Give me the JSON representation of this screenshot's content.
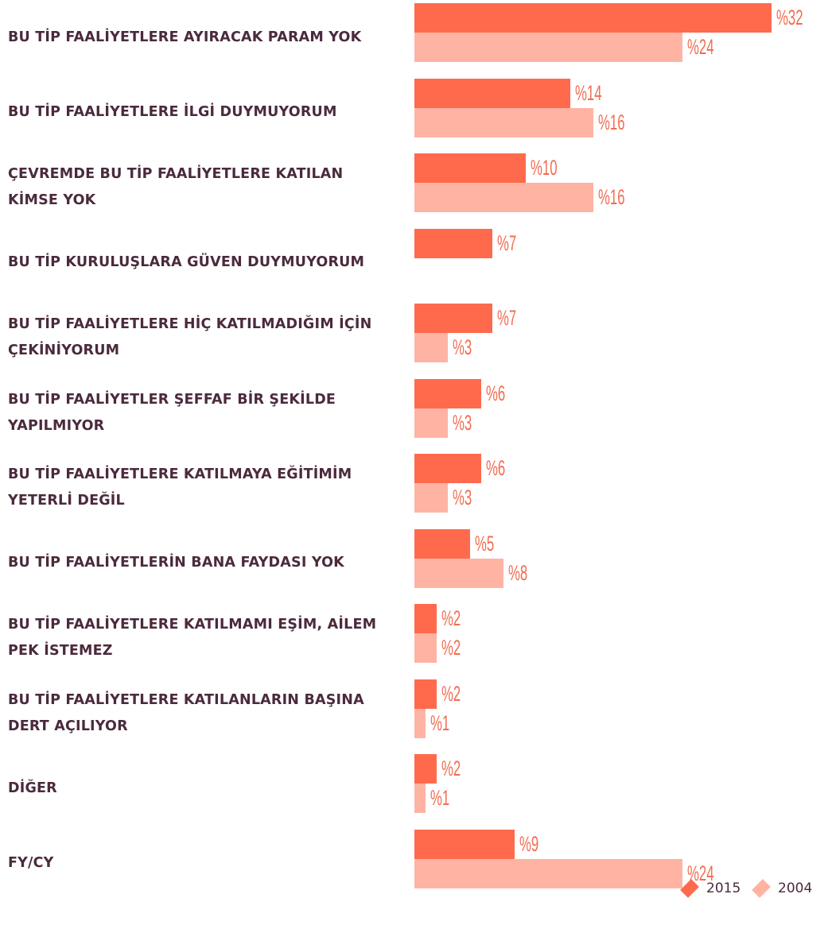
{
  "chart_data": {
    "type": "bar",
    "horizontal": true,
    "categories": [
      "BU TİP FAALİYETLERE AYIRACAK PARAM YOK",
      "BU TİP FAALİYETLERE İLGİ DUYMUYORUM",
      "ÇEVREMDE BU TİP FAALİYETLERE KATILAN KİMSE YOK",
      "BU TİP KURULUŞLARA GÜVEN DUYMUYORUM",
      "BU TİP FAALİYETLERE HİÇ KATILMADIĞIM İÇİN ÇEKİNİYORUM",
      "BU TİP FAALİYETLER ŞEFFAF BİR ŞEKİLDE YAPILMIYOR",
      "BU TİP FAALİYETLERE KATILMAYA EĞİTİMİM YETERLİ DEĞİL",
      "BU TİP FAALİYETLERİN BANA FAYDASI YOK",
      "BU TİP FAALİYETLERE KATILMAMI EŞİM, AİLEM PEK İSTEMEZ",
      "BU TİP FAALİYETLERE KATILANLARIN BAŞINA DERT AÇILIYOR",
      "DİĞER",
      "FY/CY"
    ],
    "series": [
      {
        "name": "2015",
        "color": "#ff6a4d",
        "values": [
          32,
          14,
          10,
          7,
          7,
          6,
          6,
          5,
          2,
          2,
          2,
          9
        ],
        "value_labels": [
          "%32",
          "%14",
          "%10",
          "%7",
          "%7",
          "%6",
          "%6",
          "%5",
          "%2",
          "%2",
          "%2",
          "%9"
        ]
      },
      {
        "name": "2004",
        "color": "#ffb3a3",
        "values": [
          24,
          16,
          16,
          null,
          3,
          3,
          3,
          8,
          2,
          1,
          1,
          24
        ],
        "value_labels": [
          "%24",
          "%16",
          "%16",
          null,
          "%3",
          "%3",
          "%3",
          "%8",
          "%2",
          "%1",
          "%1",
          "%24"
        ]
      }
    ],
    "legend": "bottom-right"
  }
}
